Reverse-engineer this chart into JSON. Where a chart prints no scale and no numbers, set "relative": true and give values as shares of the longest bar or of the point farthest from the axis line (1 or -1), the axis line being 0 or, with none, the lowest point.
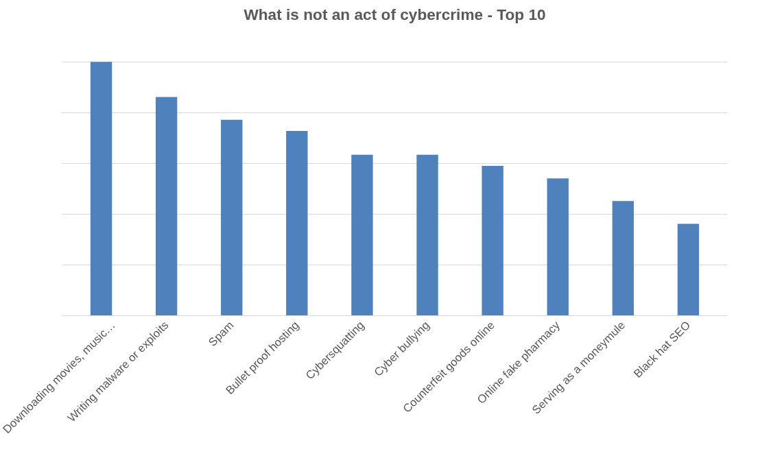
{
  "chart_data": {
    "type": "bar",
    "title": "What is not an act of cybercrime - Top 10",
    "relative": true,
    "grid": "y",
    "color": "#4f81bd",
    "categories": [
      "Downloading movies, music…",
      "Writing malware or exploits",
      "Spam",
      "Bullet proof hosting",
      "Cybersquatting",
      "Cyber bullying",
      "Counterfeit goods online",
      "Online fake pharmacy",
      "Serving as a moneymule",
      "Black hat SEO"
    ],
    "values": [
      1,
      0.862,
      0.772,
      0.728,
      0.634,
      0.634,
      0.59,
      0.541,
      0.452,
      0.362
    ]
  }
}
